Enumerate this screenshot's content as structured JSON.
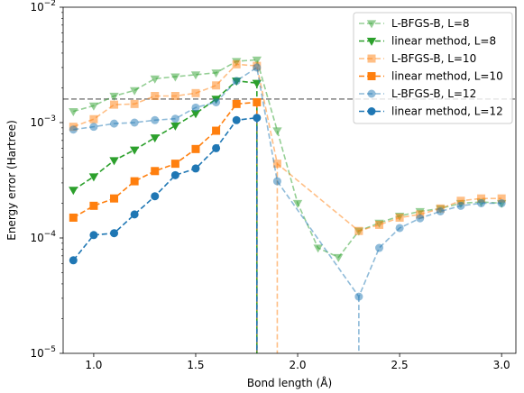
{
  "chart_data": {
    "type": "line",
    "xlabel": "Bond length (Å)",
    "ylabel": "Energy error (Hartree)",
    "xlim": [
      0.85,
      3.07
    ],
    "ylim": [
      1e-05,
      0.01
    ],
    "yscale": "log",
    "x_ticks": [
      1.0,
      1.5,
      2.0,
      2.5,
      3.0
    ],
    "x_tick_labels": [
      "1.0",
      "1.5",
      "2.0",
      "2.5",
      "3.0"
    ],
    "y_ticks": [
      1e-05,
      0.0001,
      0.001,
      0.01
    ],
    "y_tick_labels": [
      {
        "base": "10",
        "exp": "−5"
      },
      {
        "base": "10",
        "exp": "−4"
      },
      {
        "base": "10",
        "exp": "−3"
      },
      {
        "base": "10",
        "exp": "−2"
      }
    ],
    "hline": {
      "y": 0.0016,
      "color": "#808080",
      "style": "dashed"
    },
    "legend": {
      "placement": "top-right"
    },
    "series": [
      {
        "name": "L-BFGS-B, L=8",
        "color": "#2ca02c",
        "alpha": 0.5,
        "marker": "triangle-down",
        "x": [
          0.9,
          1.0,
          1.1,
          1.2,
          1.3,
          1.4,
          1.5,
          1.6,
          1.7,
          1.8,
          1.9,
          2.0,
          2.1,
          2.2,
          2.3,
          2.4,
          2.5,
          2.6,
          2.7,
          2.8,
          2.9,
          3.0
        ],
        "y": [
          0.00125,
          0.0014,
          0.0017,
          0.0019,
          0.0024,
          0.0025,
          0.0026,
          0.0027,
          0.0034,
          0.0035,
          0.00085,
          0.0002,
          8.2e-05,
          6.8e-05,
          0.000115,
          0.000135,
          0.000155,
          0.00017,
          0.00018,
          0.0002,
          0.000205,
          0.0002
        ]
      },
      {
        "name": "linear method, L=8",
        "color": "#2ca02c",
        "alpha": 1.0,
        "marker": "triangle-down",
        "x": [
          0.9,
          1.0,
          1.1,
          1.2,
          1.3,
          1.4,
          1.5,
          1.6,
          1.7,
          1.8
        ],
        "y": [
          0.00026,
          0.00034,
          0.00047,
          0.00058,
          0.00074,
          0.00094,
          0.0012,
          0.0016,
          0.0023,
          0.0022
        ],
        "drop_to_x": 1.8
      },
      {
        "name": "L-BFGS-B, L=10",
        "color": "#ff7f0e",
        "alpha": 0.5,
        "marker": "square",
        "x": [
          0.9,
          1.0,
          1.1,
          1.2,
          1.3,
          1.4,
          1.5,
          1.6,
          1.7,
          1.8,
          1.9,
          2.3,
          2.4,
          2.5,
          2.6,
          2.7,
          2.8,
          2.9,
          3.0
        ],
        "y": [
          0.00092,
          0.00107,
          0.00143,
          0.00145,
          0.0017,
          0.0017,
          0.0018,
          0.0021,
          0.0032,
          0.0031,
          0.00044,
          0.000115,
          0.00013,
          0.00015,
          0.00016,
          0.00018,
          0.00021,
          0.00022,
          0.00022
        ],
        "drop_to_x": 1.9
      },
      {
        "name": "linear method, L=10",
        "color": "#ff7f0e",
        "alpha": 1.0,
        "marker": "square",
        "x": [
          0.9,
          1.0,
          1.1,
          1.2,
          1.3,
          1.4,
          1.5,
          1.6,
          1.7,
          1.8
        ],
        "y": [
          0.00015,
          0.00019,
          0.00022,
          0.00031,
          0.00038,
          0.00044,
          0.00059,
          0.00085,
          0.00145,
          0.0015
        ],
        "drop_to_x": 1.8
      },
      {
        "name": "L-BFGS-B, L=12",
        "color": "#1f77b4",
        "alpha": 0.5,
        "marker": "circle",
        "x": [
          0.9,
          1.0,
          1.1,
          1.2,
          1.3,
          1.4,
          1.5,
          1.6,
          1.7,
          1.8,
          1.9,
          2.3,
          2.4,
          2.5,
          2.6,
          2.7,
          2.8,
          2.9,
          3.0
        ],
        "y": [
          0.00087,
          0.00092,
          0.00098,
          0.001,
          0.00105,
          0.00108,
          0.00135,
          0.0015,
          0.0023,
          0.003,
          0.00031,
          3.1e-05,
          8.2e-05,
          0.000122,
          0.000148,
          0.00017,
          0.00019,
          0.0002,
          0.0002
        ],
        "drop_to_x": 2.3
      },
      {
        "name": "linear method, L=12",
        "color": "#1f77b4",
        "alpha": 1.0,
        "marker": "circle",
        "x": [
          0.9,
          1.0,
          1.1,
          1.2,
          1.3,
          1.4,
          1.5,
          1.6,
          1.7,
          1.8
        ],
        "y": [
          6.4e-05,
          0.000106,
          0.00011,
          0.00016,
          0.00023,
          0.00035,
          0.0004,
          0.0006,
          0.00105,
          0.0011
        ],
        "drop_to_x": 1.8
      }
    ]
  }
}
